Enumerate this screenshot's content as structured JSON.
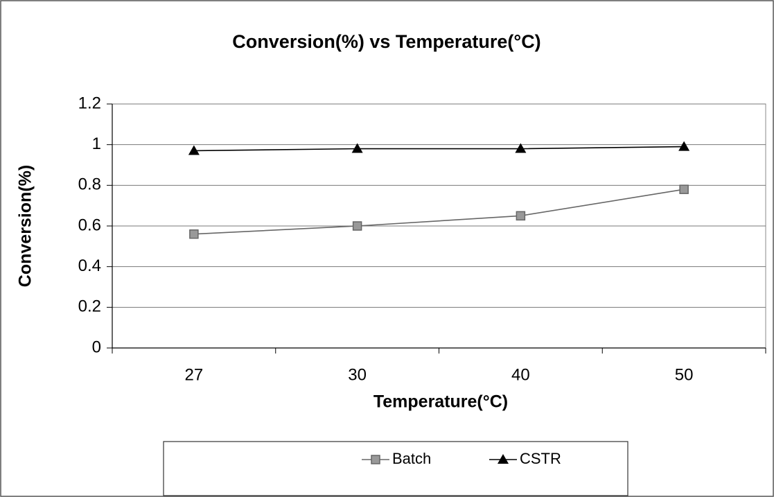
{
  "chart_data": {
    "type": "line",
    "title": "Conversion(%) vs Temperature(°C)",
    "x_label": "Temperature(°C)",
    "y_label": "Conversion(%)",
    "categories": [
      "27",
      "30",
      "40",
      "50"
    ],
    "series": [
      {
        "name": "Batch",
        "color": "#666666",
        "marker": "square",
        "values": [
          0.56,
          0.6,
          0.65,
          0.78
        ]
      },
      {
        "name": "CSTR",
        "color": "#000000",
        "marker": "triangle",
        "values": [
          0.97,
          0.98,
          0.98,
          0.99
        ]
      }
    ],
    "ylim": [
      0,
      1.2
    ],
    "yticks": [
      0,
      0.2,
      0.4,
      0.6,
      0.8,
      1,
      1.2
    ],
    "grid": true,
    "legend": "bottom"
  }
}
